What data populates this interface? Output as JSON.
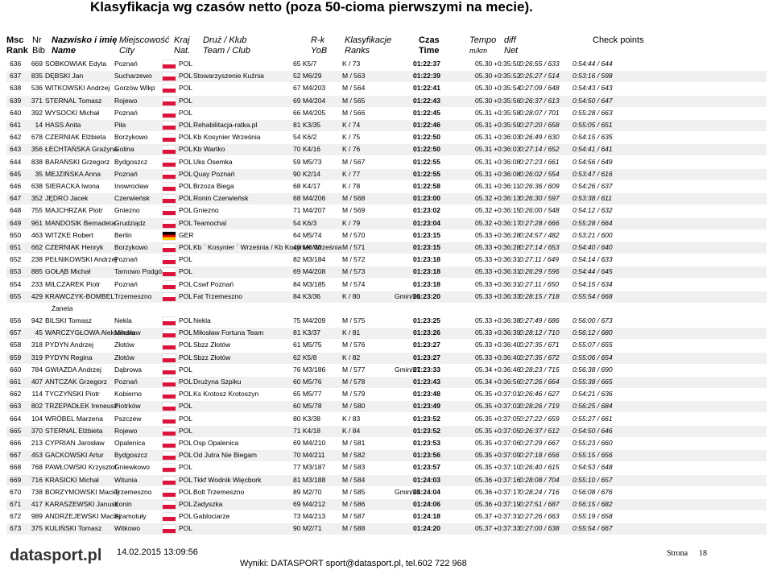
{
  "header": {
    "title": "Klasyfikacja wg czasów netto (poza 50-cioma pierwszymi na mecie)."
  },
  "columns": [
    [
      "Msc",
      "Rank"
    ],
    [
      "Nr",
      "Bib"
    ],
    [
      "Nazwisko i imię",
      "Name"
    ],
    [
      "Miejscowość",
      "City"
    ],
    [
      "Kraj",
      "Nat."
    ],
    [
      "Druż / Klub",
      "Team / Club"
    ],
    [
      "R-k",
      "YoB"
    ],
    [
      "Klasyfikacje",
      "Ranks"
    ],
    [
      "Czas",
      "Time"
    ],
    [
      "Tempo",
      "m/km"
    ],
    [
      "diff",
      "Net"
    ],
    [
      "Check points"
    ]
  ],
  "table": {
    "rows": [
      [
        "636",
        "669",
        "SOBKOWIAK Edyta",
        "Poznań",
        "POL",
        null,
        "65 K5/7",
        "K / 73",
        null,
        "01:22:37",
        "05.30",
        "+0:35:50",
        "0:26:55 / 633",
        "0:54:44 / 644"
      ],
      [
        "637",
        "835",
        "DĘBSKI Jan",
        "Sucharzewo",
        "POL",
        "Stowarzyszenie Kuźnia",
        "52 M6/29",
        "M / 563",
        null,
        "01:22:39",
        "05.30",
        "+0:35:52",
        "0:25:27 / 514",
        "0:53:16 / 598"
      ],
      [
        "638",
        "536",
        "WITKOWSKI Andrzej",
        "Gorzów Wlkp",
        "POL",
        null,
        "67 M4/203",
        "M / 564",
        null,
        "01:22:41",
        "05.30",
        "+0:35:54",
        "0:27:09 / 648",
        "0:54:43 / 643"
      ],
      [
        "639",
        "371",
        "STERNAL Tomasz",
        "Rojewo",
        "POL",
        null,
        "69 M4/204",
        "M / 565",
        null,
        "01:22:43",
        "05.30",
        "+0:35:56",
        "0:26:37 / 613",
        "0:54:50 / 647"
      ],
      [
        "640",
        "392",
        "WYSOCKI Michał",
        "Poznań",
        "POL",
        null,
        "66 M4/205",
        "M / 566",
        null,
        "01:22:45",
        "05.31",
        "+0:35:58",
        "0:28:07 / 701",
        "0:55:28 / 663"
      ],
      [
        "641",
        "14",
        "HASS Anita",
        "Piła",
        "POL",
        "Rehabilitacja-ratka.pl",
        "81 K3/35",
        "K / 74",
        null,
        "01:22:46",
        "05.31",
        "+0:35:59",
        "0:27:20 / 658",
        "0:55:05 / 651"
      ],
      [
        "642",
        "678",
        "CZERNIAK Elżbieta",
        "Borzykowo",
        "POL",
        "Kb Kosynier Września",
        "54 K6/2",
        "K / 75",
        null,
        "01:22:50",
        "05.31",
        "+0:36:03",
        "0:26:49 / 630",
        "0:54:15 / 635"
      ],
      [
        "643",
        "356",
        "ŁECHTAŃSKA Grażyna",
        "Golina",
        "POL",
        "Kb Wartko",
        "70 K4/16",
        "K / 76",
        null,
        "01:22:50",
        "05.31",
        "+0:36:03",
        "0:27:14 / 652",
        "0:54:41 / 641"
      ],
      [
        "644",
        "838",
        "BARAŃSKI Grzegorz",
        "Bydgoszcz",
        "POL",
        "Uks Ósemka",
        "59 M5/73",
        "M / 567",
        null,
        "01:22:55",
        "05.31",
        "+0:36:08",
        "0:27:23 / 661",
        "0:54:56 / 649"
      ],
      [
        "645",
        "35",
        "MEJZIŃSKA Anna",
        "Poznań",
        "POL",
        "Quay Poznań",
        "90 K2/14",
        "K / 77",
        null,
        "01:22:55",
        "05.31",
        "+0:36:08",
        "0:26:02 / 554",
        "0:53:47 / 616"
      ],
      [
        "646",
        "638",
        "SIERACKA Iwona",
        "Inowrocław",
        "POL",
        "Brzoza Biega",
        "68 K4/17",
        "K / 78",
        null,
        "01:22:58",
        "05.31",
        "+0:36:11",
        "0:26:36 / 609",
        "0:54:26 / 637"
      ],
      [
        "647",
        "352",
        "JĘDRO Jacek",
        "Czerwieńsk",
        "POL",
        "Ronin Czerwieńsk",
        "68 M4/206",
        "M / 568",
        null,
        "01:23:00",
        "05.32",
        "+0:36:13",
        "0:26:30 / 597",
        "0:53:38 / 611"
      ],
      [
        "648",
        "755",
        "MAJCHRZAK Piotr",
        "Gniezno",
        "POL",
        "Gniezno",
        "71 M4/207",
        "M / 569",
        null,
        "01:23:02",
        "05.32",
        "+0:36:15",
        "0:26:00 / 548",
        "0:54:12 / 632"
      ],
      [
        "649",
        "961",
        "MANDOSIK Bernadeta",
        "Grudziądz",
        "POL",
        "Teamochal",
        "54 K6/3",
        "K / 79",
        null,
        "01:23:04",
        "05.32",
        "+0:36:17",
        "0:27:28 / 666",
        "0:55:28 / 664"
      ],
      [
        "650",
        "463",
        "WITZKE Robert",
        "Berlin",
        "GER",
        null,
        "64 M5/74",
        "M / 570",
        null,
        "01:23:15",
        "05.33",
        "+0:36:28",
        "0:24:57 / 482",
        "0:53:21 / 600"
      ],
      [
        "651",
        "662",
        "CZERNIAK Henryk",
        "Borzykowo",
        "POL",
        "Kb ` Kosynier ` Września / Kb Kosynier Września",
        "48 M6/30",
        "M / 571",
        null,
        "01:23:15",
        "05.33",
        "+0:36:28",
        "0:27:14 / 653",
        "0:54:40 / 640"
      ],
      [
        "652",
        "238",
        "PEŁNIKOWSKI Andrzej",
        "Poznań",
        "POL",
        null,
        "82 M3/184",
        "M / 572",
        null,
        "01:23:18",
        "05.33",
        "+0:36:31",
        "0:27:11 / 649",
        "0:54:14 / 633"
      ],
      [
        "653",
        "885",
        "GOŁĄB Michał",
        "Tarnowo Podgórne",
        "POL",
        null,
        "69 M4/208",
        "M / 573",
        null,
        "01:23:18",
        "05.33",
        "+0:36:31",
        "0:26:29 / 596",
        "0:54:44 / 645"
      ],
      [
        "654",
        "233",
        "MILCZAREK Piotr",
        "Poznań",
        "POL",
        "Cswf Poznań",
        "84 M3/185",
        "M / 574",
        null,
        "01:23:18",
        "05.33",
        "+0:36:31",
        "0:27:11 / 650",
        "0:54:15 / 634"
      ],
      [
        "655",
        "429",
        [
          "KRAWCZYK-BOMBEL",
          "Żaneta"
        ],
        "Trzemeszno",
        "POL",
        "Fat Trzemeszno",
        "84 K3/36",
        "K / 80",
        "Gmin/26",
        "01:23:20",
        "05.33",
        "+0:36:33",
        "0:28:15 / 718",
        "0:55:54 / 668"
      ],
      [
        "656",
        "942",
        "BILSKI Tomasz",
        "Nekla",
        "POL",
        "Nekla",
        "75 M4/209",
        "M / 575",
        null,
        "01:23:25",
        "05.33",
        "+0:36:38",
        "0:27:49 / 686",
        "0:56:00 / 673"
      ],
      [
        "657",
        "45",
        "WARCZYGŁOWA Aleksandra",
        "Miłosław",
        "POL",
        "Miłosław Fortuna Team",
        "81 K3/37",
        "K / 81",
        null,
        "01:23:26",
        "05.33",
        "+0:36:39",
        "0:28:12 / 710",
        "0:56:12 / 680"
      ],
      [
        "658",
        "318",
        "PYDYN Andrzej",
        "Złotów",
        "POL",
        "Sbzz Złotów",
        "61 M5/75",
        "M / 576",
        null,
        "01:23:27",
        "05.33",
        "+0:36:40",
        "0:27:35 / 671",
        "0:55:07 / 655"
      ],
      [
        "659",
        "319",
        "PYDYN Regina",
        "Złotów",
        "POL",
        "Sbzz Złotów",
        "62 K5/8",
        "K / 82",
        null,
        "01:23:27",
        "05.33",
        "+0:36:40",
        "0:27:35 / 672",
        "0:55:06 / 654"
      ],
      [
        "660",
        "784",
        "GWIAZDA Andrzej",
        "Dąbrowa",
        "POL",
        null,
        "76 M3/186",
        "M / 577",
        "Gmin/27",
        "01:23:33",
        "05.34",
        "+0:36:46",
        "0:28:23 / 715",
        "0:56:38 / 690"
      ],
      [
        "661",
        "407",
        "ANTCZAK Grzegorz",
        "Poznań",
        "POL",
        "Drużyna Szpiku",
        "60 M5/76",
        "M / 578",
        null,
        "01:23:43",
        "05.34",
        "+0:36:56",
        "0:27:26 / 664",
        "0:55:38 / 665"
      ],
      [
        "662",
        "114",
        "TYCZYŃSKI Piotr",
        "Kobierno",
        "POL",
        "Ks Krotosz Krotoszyn",
        "65 M5/77",
        "M / 579",
        null,
        "01:23:48",
        "05.35",
        "+0:37:01",
        "0:26:46 / 627",
        "0:54:21 / 636"
      ],
      [
        "663",
        "802",
        "TRZEPADŁEK Ireneusz",
        "Piotrków",
        "POL",
        null,
        "60 M5/78",
        "M / 580",
        null,
        "01:23:49",
        "05.35",
        "+0:37:02",
        "0:28:26 / 719",
        "0:56:25 / 684"
      ],
      [
        "664",
        "104",
        "WRÓBEL Marzena",
        "Pszczew",
        "POL",
        null,
        "80 K3/38",
        "K / 83",
        null,
        "01:23:52",
        "05.35",
        "+0:37:05",
        "0:27:22 / 659",
        "0:55:27 / 661"
      ],
      [
        "665",
        "370",
        "STERNAL Elżbieta",
        "Rojewo",
        "POL",
        null,
        "71 K4/18",
        "K / 84",
        null,
        "01:23:52",
        "05.35",
        "+0:37:05",
        "0:26:37 / 612",
        "0:54:50 / 646"
      ],
      [
        "666",
        "213",
        "CYPRIAN Jarosław",
        "Opalenica",
        "POL",
        "Osp Opalenica",
        "69 M4/210",
        "M / 581",
        null,
        "01:23:53",
        "05.35",
        "+0:37:06",
        "0:27:29 / 667",
        "0:55:23 / 660"
      ],
      [
        "667",
        "453",
        "GACKOWSKI Artur",
        "Bydgoszcz",
        "POL",
        "Od Jutra Nie Biegam",
        "70 M4/211",
        "M / 582",
        null,
        "01:23:56",
        "05.35",
        "+0:37:09",
        "0:27:18 / 656",
        "0:55:15 / 656"
      ],
      [
        "668",
        "768",
        "PAWŁOWSKI Krzysztof",
        "Gniewkowo",
        "POL",
        null,
        "77 M3/187",
        "M / 583",
        null,
        "01:23:57",
        "05.35",
        "+0:37:10",
        "0:26:40 / 615",
        "0:54:53 / 648"
      ],
      [
        "669",
        "716",
        "KRASICKI Michał",
        "Witunia",
        "POL",
        "Tkkf Wodnik Więcbork",
        "81 M3/188",
        "M / 584",
        null,
        "01:24:03",
        "05.36",
        "+0:37:16",
        "0:28:08 / 704",
        "0:55:10 / 657"
      ],
      [
        "670",
        "738",
        "BORZYMOWSKI Maciej",
        "Trzemeszno",
        "POL",
        "Bolt Trzemeszno",
        "89 M2/70",
        "M / 585",
        "Gmin/28",
        "01:24:04",
        "05.36",
        "+0:37:17",
        "0:28:24 / 716",
        "0:56:08 / 676"
      ],
      [
        "671",
        "417",
        "KARASZEWSKI Janusz",
        "Konin",
        "POL",
        "Zadyszka",
        "69 M4/212",
        "M / 586",
        null,
        "01:24:06",
        "05.36",
        "+0:37:19",
        "0:27:51 / 687",
        "0:56:15 / 682"
      ],
      [
        "672",
        "989",
        "ANDRZEJEWSKI Maciej",
        "Szamotuły",
        "POL",
        "Gablociarze",
        "73 M4/213",
        "M / 587",
        null,
        "01:24:18",
        "05.37",
        "+0:37:31",
        "0:27:26 / 663",
        "0:55:19 / 658"
      ],
      [
        "673",
        "375",
        "KULIŃSKI Tomasz",
        "Witkowo",
        "POL",
        null,
        "90 M2/71",
        "M / 588",
        null,
        "01:24:20",
        "05.37",
        "+0:37:33",
        "0:27:00 / 638",
        "0:55:54 / 667"
      ]
    ]
  },
  "footer": {
    "logo": "datasport.pl",
    "timestamp": "14.02.2015 13:09:56",
    "contact": "Wyniki: DATASPORT sport@datasport.pl, tel.602 722 968",
    "page_label": "Strona",
    "page_number": "18"
  }
}
